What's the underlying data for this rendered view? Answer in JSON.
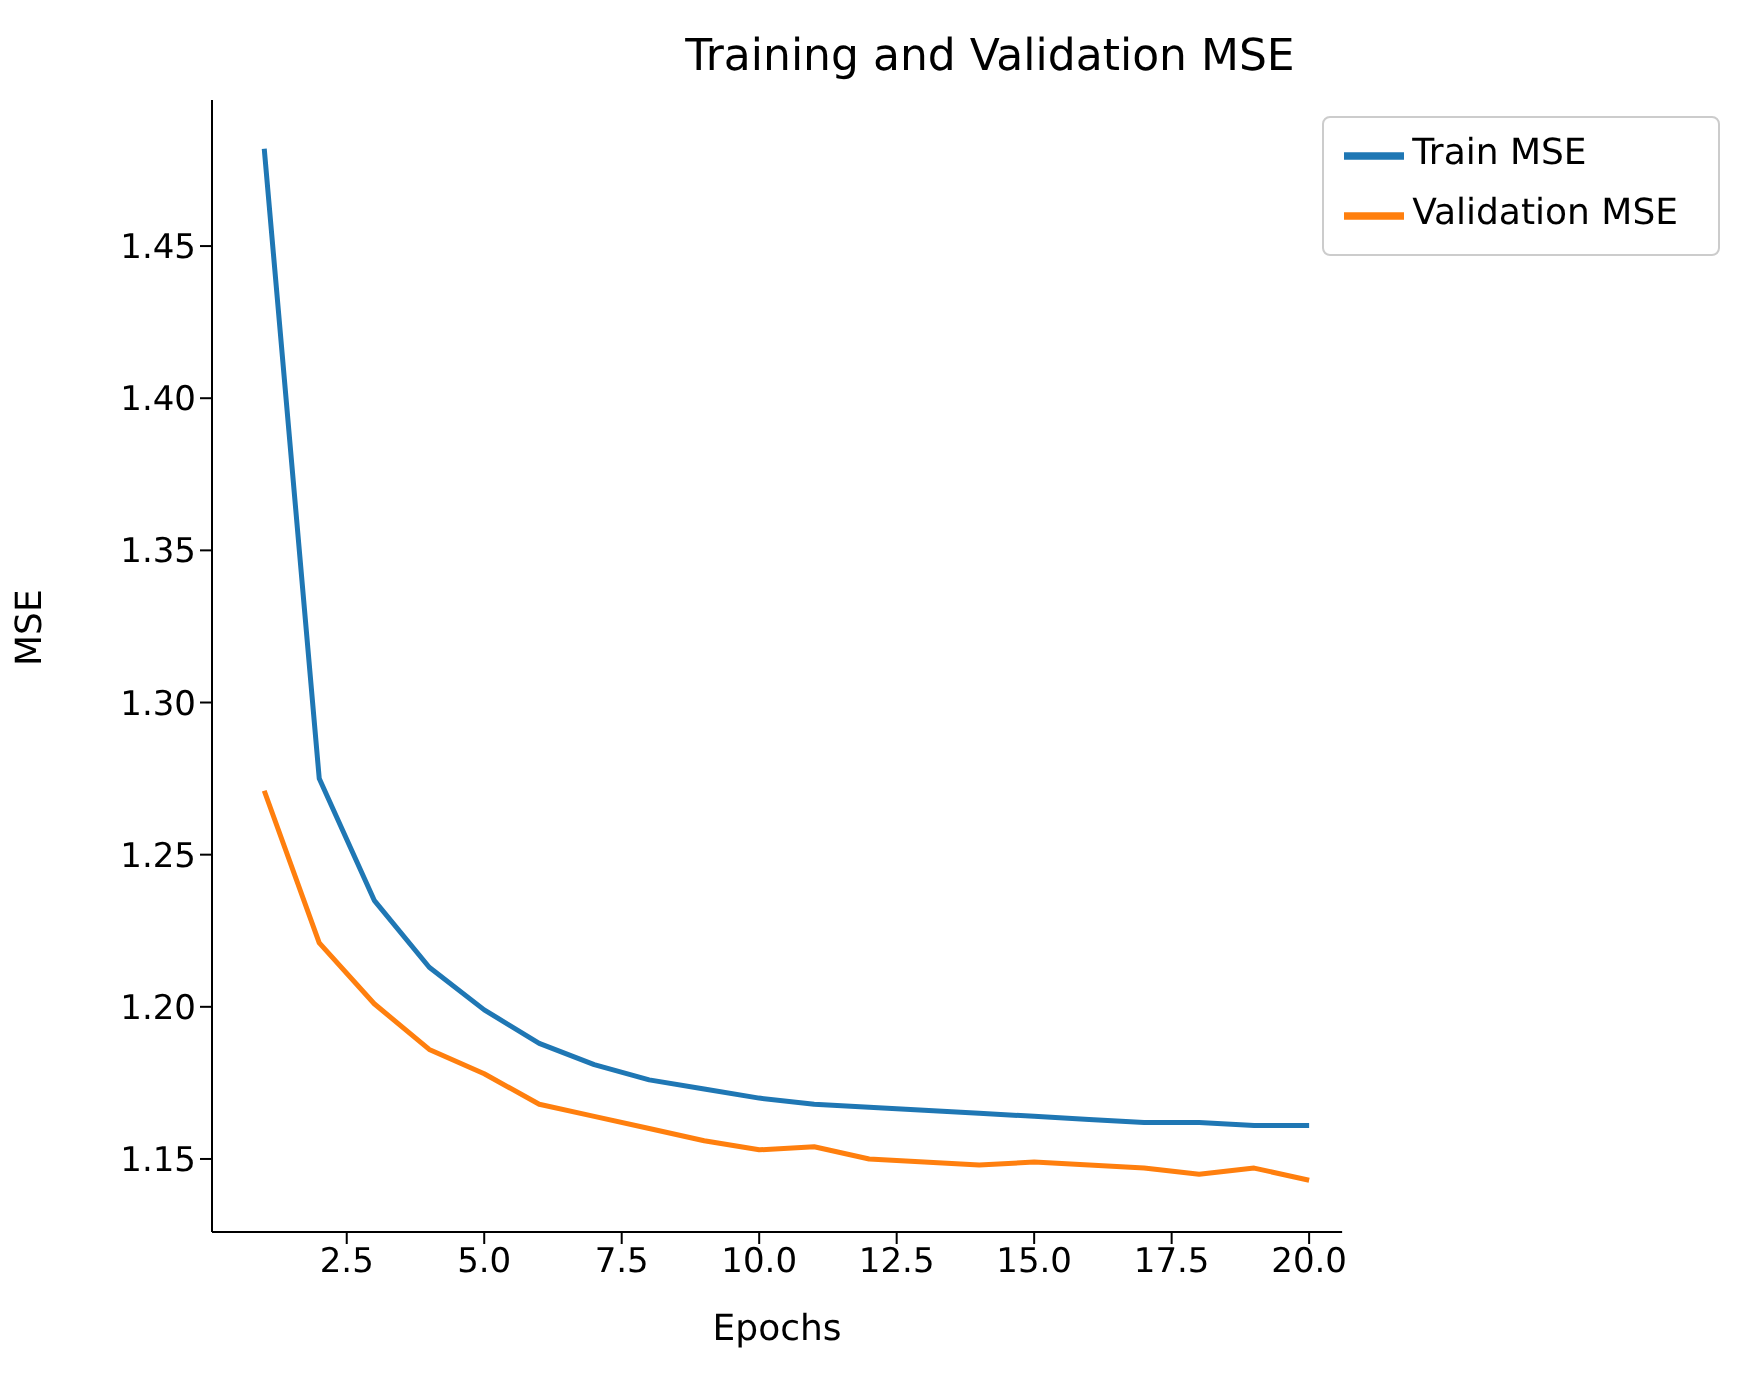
{
  "chart_data": {
    "type": "line",
    "title": "Training and Validation MSE",
    "xlabel": "Epochs",
    "ylabel": "MSE",
    "x": [
      1,
      2,
      3,
      4,
      5,
      6,
      7,
      8,
      9,
      10,
      11,
      12,
      13,
      14,
      15,
      16,
      17,
      18,
      19,
      20
    ],
    "series": [
      {
        "name": "Train MSE",
        "color": "#1f77b4",
        "values": [
          1.482,
          1.275,
          1.235,
          1.213,
          1.199,
          1.188,
          1.181,
          1.176,
          1.173,
          1.17,
          1.168,
          1.167,
          1.166,
          1.165,
          1.164,
          1.163,
          1.162,
          1.162,
          1.161,
          1.161
        ]
      },
      {
        "name": "Validation MSE",
        "color": "#ff7f0e",
        "values": [
          1.271,
          1.221,
          1.201,
          1.186,
          1.178,
          1.168,
          1.164,
          1.16,
          1.156,
          1.153,
          1.154,
          1.15,
          1.149,
          1.148,
          1.149,
          1.148,
          1.147,
          1.145,
          1.147,
          1.143
        ]
      }
    ],
    "xlim": [
      0.05,
      20.6
    ],
    "xticks": [
      {
        "value": 2.5,
        "label": "2.5"
      },
      {
        "value": 5,
        "label": "5.0"
      },
      {
        "value": 7.5,
        "label": "7.5"
      },
      {
        "value": 10,
        "label": "10.0"
      },
      {
        "value": 12.5,
        "label": "12.5"
      },
      {
        "value": 15,
        "label": "15.0"
      },
      {
        "value": 17.5,
        "label": "17.5"
      },
      {
        "value": 20,
        "label": "20.0"
      }
    ],
    "ylim": [
      1.126,
      1.498
    ],
    "yticks": [
      {
        "value": 1.15,
        "label": "1.15"
      },
      {
        "value": 1.2,
        "label": "1.20"
      },
      {
        "value": 1.25,
        "label": "1.25"
      },
      {
        "value": 1.3,
        "label": "1.30"
      },
      {
        "value": 1.35,
        "label": "1.35"
      },
      {
        "value": 1.4,
        "label": "1.40"
      },
      {
        "value": 1.45,
        "label": "1.45"
      }
    ],
    "legend": "top right",
    "grid": false
  }
}
